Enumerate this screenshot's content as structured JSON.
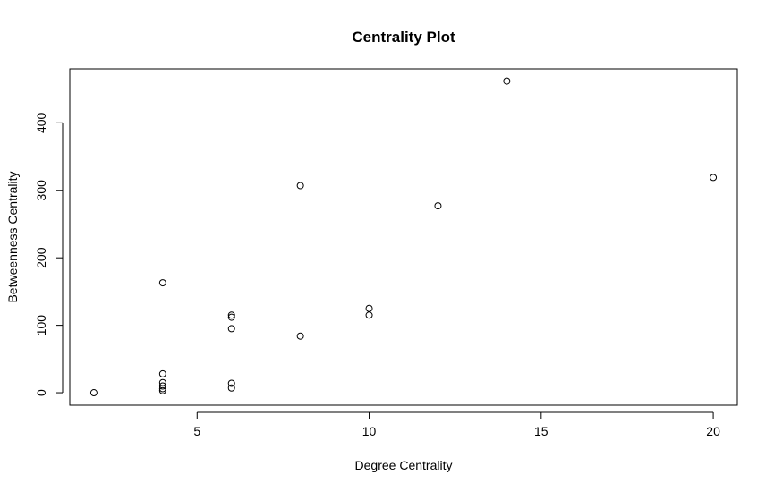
{
  "chart_data": {
    "type": "scatter",
    "title": "Centrality Plot",
    "xlabel": "Degree Centrality",
    "ylabel": "Betweenness Centrality",
    "xlim": [
      1.3,
      20.7
    ],
    "ylim": [
      -18.5,
      480
    ],
    "xticks": [
      5,
      10,
      15,
      20
    ],
    "yticks": [
      0,
      100,
      200,
      300,
      400
    ],
    "grid": false,
    "legend": "none",
    "points": [
      {
        "x": 2,
        "y": 0
      },
      {
        "x": 4,
        "y": 163
      },
      {
        "x": 4,
        "y": 28
      },
      {
        "x": 4,
        "y": 15
      },
      {
        "x": 4,
        "y": 10
      },
      {
        "x": 4,
        "y": 6
      },
      {
        "x": 4,
        "y": 3
      },
      {
        "x": 6,
        "y": 115
      },
      {
        "x": 6,
        "y": 112
      },
      {
        "x": 6,
        "y": 95
      },
      {
        "x": 6,
        "y": 14
      },
      {
        "x": 6,
        "y": 7
      },
      {
        "x": 8,
        "y": 307
      },
      {
        "x": 8,
        "y": 84
      },
      {
        "x": 10,
        "y": 125
      },
      {
        "x": 10,
        "y": 115
      },
      {
        "x": 12,
        "y": 277
      },
      {
        "x": 14,
        "y": 462
      },
      {
        "x": 20,
        "y": 319
      }
    ]
  }
}
